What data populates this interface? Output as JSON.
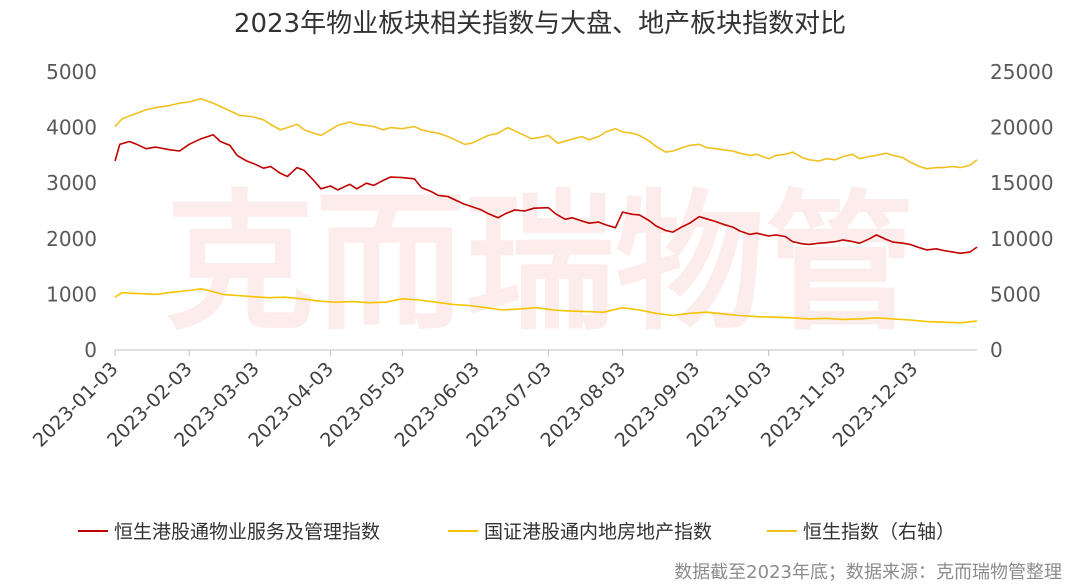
{
  "chart_data": {
    "type": "line",
    "title": "2023年物业板块相关指数与大盘、地产板块指数对比",
    "watermark": "克而瑞物管",
    "source": "数据截至2023年底；数据来源：克而瑞物管整理",
    "x_range": [
      "2023-01-03",
      "2023-12-29"
    ],
    "x_tick_labels": [
      "2023-01-03",
      "2023-02-03",
      "2023-03-03",
      "2023-04-03",
      "2023-05-03",
      "2023-06-03",
      "2023-07-03",
      "2023-08-03",
      "2023-09-03",
      "2023-10-03",
      "2023-11-03",
      "2023-12-03"
    ],
    "y_left": {
      "range": [
        0,
        5000
      ],
      "ticks": [
        0,
        1000,
        2000,
        3000,
        4000,
        5000
      ]
    },
    "y_right": {
      "range": [
        0,
        25000
      ],
      "ticks": [
        0,
        5000,
        10000,
        15000,
        20000,
        25000
      ],
      "label": "右轴"
    },
    "legend_position": "bottom",
    "grid": false,
    "series": [
      {
        "name": "恒生港股通物业服务及管理指数",
        "axis": "left",
        "color": "#c00000",
        "points": [
          [
            "2023-01-03",
            3400
          ],
          [
            "2023-01-05",
            3700
          ],
          [
            "2023-01-09",
            3750
          ],
          [
            "2023-01-12",
            3700
          ],
          [
            "2023-01-16",
            3620
          ],
          [
            "2023-01-20",
            3650
          ],
          [
            "2023-01-26",
            3600
          ],
          [
            "2023-01-30",
            3580
          ],
          [
            "2023-02-03",
            3700
          ],
          [
            "2023-02-08",
            3800
          ],
          [
            "2023-02-13",
            3870
          ],
          [
            "2023-02-16",
            3750
          ],
          [
            "2023-02-20",
            3680
          ],
          [
            "2023-02-23",
            3500
          ],
          [
            "2023-02-27",
            3400
          ],
          [
            "2023-03-02",
            3350
          ],
          [
            "2023-03-06",
            3270
          ],
          [
            "2023-03-09",
            3300
          ],
          [
            "2023-03-13",
            3180
          ],
          [
            "2023-03-16",
            3120
          ],
          [
            "2023-03-20",
            3280
          ],
          [
            "2023-03-23",
            3230
          ],
          [
            "2023-03-27",
            3050
          ],
          [
            "2023-03-30",
            2900
          ],
          [
            "2023-04-03",
            2950
          ],
          [
            "2023-04-06",
            2880
          ],
          [
            "2023-04-11",
            2980
          ],
          [
            "2023-04-14",
            2900
          ],
          [
            "2023-04-18",
            3000
          ],
          [
            "2023-04-21",
            2960
          ],
          [
            "2023-04-25",
            3050
          ],
          [
            "2023-04-28",
            3110
          ],
          [
            "2023-05-03",
            3100
          ],
          [
            "2023-05-08",
            3080
          ],
          [
            "2023-05-11",
            2920
          ],
          [
            "2023-05-15",
            2850
          ],
          [
            "2023-05-18",
            2780
          ],
          [
            "2023-05-22",
            2760
          ],
          [
            "2023-05-25",
            2700
          ],
          [
            "2023-05-29",
            2620
          ],
          [
            "2023-06-01",
            2580
          ],
          [
            "2023-06-05",
            2520
          ],
          [
            "2023-06-08",
            2450
          ],
          [
            "2023-06-12",
            2380
          ],
          [
            "2023-06-15",
            2450
          ],
          [
            "2023-06-19",
            2520
          ],
          [
            "2023-06-23",
            2500
          ],
          [
            "2023-06-27",
            2550
          ],
          [
            "2023-07-03",
            2560
          ],
          [
            "2023-07-06",
            2450
          ],
          [
            "2023-07-10",
            2350
          ],
          [
            "2023-07-13",
            2380
          ],
          [
            "2023-07-17",
            2320
          ],
          [
            "2023-07-20",
            2280
          ],
          [
            "2023-07-24",
            2300
          ],
          [
            "2023-07-27",
            2250
          ],
          [
            "2023-07-31",
            2200
          ],
          [
            "2023-08-03",
            2480
          ],
          [
            "2023-08-07",
            2440
          ],
          [
            "2023-08-10",
            2430
          ],
          [
            "2023-08-14",
            2330
          ],
          [
            "2023-08-17",
            2230
          ],
          [
            "2023-08-21",
            2150
          ],
          [
            "2023-08-24",
            2120
          ],
          [
            "2023-08-28",
            2220
          ],
          [
            "2023-08-31",
            2280
          ],
          [
            "2023-09-04",
            2400
          ],
          [
            "2023-09-07",
            2360
          ],
          [
            "2023-09-11",
            2310
          ],
          [
            "2023-09-14",
            2260
          ],
          [
            "2023-09-18",
            2210
          ],
          [
            "2023-09-21",
            2140
          ],
          [
            "2023-09-25",
            2080
          ],
          [
            "2023-09-28",
            2100
          ],
          [
            "2023-10-03",
            2050
          ],
          [
            "2023-10-06",
            2070
          ],
          [
            "2023-10-10",
            2040
          ],
          [
            "2023-10-13",
            1950
          ],
          [
            "2023-10-17",
            1910
          ],
          [
            "2023-10-20",
            1900
          ],
          [
            "2023-10-24",
            1920
          ],
          [
            "2023-10-27",
            1930
          ],
          [
            "2023-10-31",
            1950
          ],
          [
            "2023-11-03",
            1980
          ],
          [
            "2023-11-07",
            1950
          ],
          [
            "2023-11-10",
            1920
          ],
          [
            "2023-11-14",
            2000
          ],
          [
            "2023-11-17",
            2070
          ],
          [
            "2023-11-21",
            1990
          ],
          [
            "2023-11-24",
            1940
          ],
          [
            "2023-11-28",
            1920
          ],
          [
            "2023-12-01",
            1900
          ],
          [
            "2023-12-05",
            1840
          ],
          [
            "2023-12-08",
            1800
          ],
          [
            "2023-12-12",
            1820
          ],
          [
            "2023-12-15",
            1790
          ],
          [
            "2023-12-19",
            1760
          ],
          [
            "2023-12-22",
            1740
          ],
          [
            "2023-12-26",
            1760
          ],
          [
            "2023-12-29",
            1850
          ]
        ]
      },
      {
        "name": "国证港股通内地房地产指数",
        "axis": "left",
        "color": "#f5c400",
        "points": [
          [
            "2023-01-03",
            950
          ],
          [
            "2023-01-06",
            1030
          ],
          [
            "2023-01-10",
            1020
          ],
          [
            "2023-01-16",
            1010
          ],
          [
            "2023-01-20",
            1000
          ],
          [
            "2023-01-27",
            1040
          ],
          [
            "2023-02-03",
            1070
          ],
          [
            "2023-02-08",
            1100
          ],
          [
            "2023-02-13",
            1050
          ],
          [
            "2023-02-17",
            1000
          ],
          [
            "2023-02-23",
            980
          ],
          [
            "2023-03-01",
            960
          ],
          [
            "2023-03-08",
            940
          ],
          [
            "2023-03-15",
            950
          ],
          [
            "2023-03-22",
            920
          ],
          [
            "2023-03-29",
            880
          ],
          [
            "2023-04-05",
            860
          ],
          [
            "2023-04-12",
            870
          ],
          [
            "2023-04-19",
            850
          ],
          [
            "2023-04-26",
            860
          ],
          [
            "2023-05-03",
            920
          ],
          [
            "2023-05-10",
            900
          ],
          [
            "2023-05-17",
            860
          ],
          [
            "2023-05-24",
            820
          ],
          [
            "2023-05-31",
            800
          ],
          [
            "2023-06-07",
            760
          ],
          [
            "2023-06-14",
            720
          ],
          [
            "2023-06-21",
            740
          ],
          [
            "2023-06-28",
            760
          ],
          [
            "2023-07-05",
            720
          ],
          [
            "2023-07-12",
            700
          ],
          [
            "2023-07-19",
            690
          ],
          [
            "2023-07-26",
            680
          ],
          [
            "2023-08-03",
            760
          ],
          [
            "2023-08-10",
            720
          ],
          [
            "2023-08-17",
            660
          ],
          [
            "2023-08-24",
            620
          ],
          [
            "2023-08-31",
            660
          ],
          [
            "2023-09-07",
            680
          ],
          [
            "2023-09-14",
            650
          ],
          [
            "2023-09-21",
            620
          ],
          [
            "2023-09-28",
            600
          ],
          [
            "2023-10-06",
            590
          ],
          [
            "2023-10-13",
            580
          ],
          [
            "2023-10-20",
            560
          ],
          [
            "2023-10-27",
            570
          ],
          [
            "2023-11-03",
            550
          ],
          [
            "2023-11-10",
            560
          ],
          [
            "2023-11-17",
            580
          ],
          [
            "2023-11-24",
            560
          ],
          [
            "2023-12-01",
            540
          ],
          [
            "2023-12-08",
            510
          ],
          [
            "2023-12-15",
            500
          ],
          [
            "2023-12-22",
            490
          ],
          [
            "2023-12-29",
            520
          ]
        ]
      },
      {
        "name": "恒生指数（右轴）",
        "axis": "right",
        "color": "#f0c020",
        "points": [
          [
            "2023-01-03",
            20100
          ],
          [
            "2023-01-06",
            20800
          ],
          [
            "2023-01-11",
            21200
          ],
          [
            "2023-01-16",
            21600
          ],
          [
            "2023-01-20",
            21800
          ],
          [
            "2023-01-26",
            22000
          ],
          [
            "2023-01-30",
            22200
          ],
          [
            "2023-02-03",
            22300
          ],
          [
            "2023-02-08",
            22600
          ],
          [
            "2023-02-13",
            22200
          ],
          [
            "2023-02-16",
            21900
          ],
          [
            "2023-02-20",
            21500
          ],
          [
            "2023-02-24",
            21100
          ],
          [
            "2023-03-01",
            21000
          ],
          [
            "2023-03-06",
            20700
          ],
          [
            "2023-03-09",
            20300
          ],
          [
            "2023-03-13",
            19800
          ],
          [
            "2023-03-16",
            20000
          ],
          [
            "2023-03-20",
            20300
          ],
          [
            "2023-03-23",
            19800
          ],
          [
            "2023-03-27",
            19500
          ],
          [
            "2023-03-30",
            19300
          ],
          [
            "2023-04-03",
            19800
          ],
          [
            "2023-04-06",
            20200
          ],
          [
            "2023-04-11",
            20500
          ],
          [
            "2023-04-14",
            20300
          ],
          [
            "2023-04-18",
            20200
          ],
          [
            "2023-04-21",
            20100
          ],
          [
            "2023-04-25",
            19800
          ],
          [
            "2023-04-28",
            20000
          ],
          [
            "2023-05-03",
            19900
          ],
          [
            "2023-05-08",
            20100
          ],
          [
            "2023-05-11",
            19800
          ],
          [
            "2023-05-15",
            19600
          ],
          [
            "2023-05-18",
            19500
          ],
          [
            "2023-05-22",
            19200
          ],
          [
            "2023-05-25",
            18900
          ],
          [
            "2023-05-29",
            18500
          ],
          [
            "2023-06-01",
            18600
          ],
          [
            "2023-06-05",
            19000
          ],
          [
            "2023-06-08",
            19300
          ],
          [
            "2023-06-12",
            19500
          ],
          [
            "2023-06-16",
            20000
          ],
          [
            "2023-06-21",
            19500
          ],
          [
            "2023-06-26",
            19000
          ],
          [
            "2023-06-29",
            19100
          ],
          [
            "2023-07-03",
            19300
          ],
          [
            "2023-07-07",
            18600
          ],
          [
            "2023-07-12",
            18900
          ],
          [
            "2023-07-17",
            19200
          ],
          [
            "2023-07-20",
            18900
          ],
          [
            "2023-07-24",
            19200
          ],
          [
            "2023-07-27",
            19600
          ],
          [
            "2023-07-31",
            19900
          ],
          [
            "2023-08-03",
            19600
          ],
          [
            "2023-08-07",
            19500
          ],
          [
            "2023-08-10",
            19300
          ],
          [
            "2023-08-14",
            18800
          ],
          [
            "2023-08-17",
            18300
          ],
          [
            "2023-08-21",
            17800
          ],
          [
            "2023-08-24",
            17900
          ],
          [
            "2023-08-28",
            18200
          ],
          [
            "2023-08-31",
            18400
          ],
          [
            "2023-09-04",
            18500
          ],
          [
            "2023-09-07",
            18200
          ],
          [
            "2023-09-11",
            18100
          ],
          [
            "2023-09-14",
            18000
          ],
          [
            "2023-09-18",
            17900
          ],
          [
            "2023-09-21",
            17700
          ],
          [
            "2023-09-25",
            17500
          ],
          [
            "2023-09-28",
            17600
          ],
          [
            "2023-10-03",
            17200
          ],
          [
            "2023-10-06",
            17500
          ],
          [
            "2023-10-10",
            17600
          ],
          [
            "2023-10-13",
            17800
          ],
          [
            "2023-10-17",
            17300
          ],
          [
            "2023-10-20",
            17100
          ],
          [
            "2023-10-24",
            17000
          ],
          [
            "2023-10-27",
            17200
          ],
          [
            "2023-10-31",
            17100
          ],
          [
            "2023-11-03",
            17400
          ],
          [
            "2023-11-07",
            17600
          ],
          [
            "2023-11-10",
            17200
          ],
          [
            "2023-11-14",
            17400
          ],
          [
            "2023-11-17",
            17500
          ],
          [
            "2023-11-21",
            17700
          ],
          [
            "2023-11-24",
            17500
          ],
          [
            "2023-11-28",
            17300
          ],
          [
            "2023-12-01",
            16900
          ],
          [
            "2023-12-05",
            16500
          ],
          [
            "2023-12-08",
            16300
          ],
          [
            "2023-12-12",
            16400
          ],
          [
            "2023-12-15",
            16400
          ],
          [
            "2023-12-19",
            16500
          ],
          [
            "2023-12-22",
            16400
          ],
          [
            "2023-12-26",
            16600
          ],
          [
            "2023-12-29",
            17100
          ]
        ]
      }
    ]
  }
}
